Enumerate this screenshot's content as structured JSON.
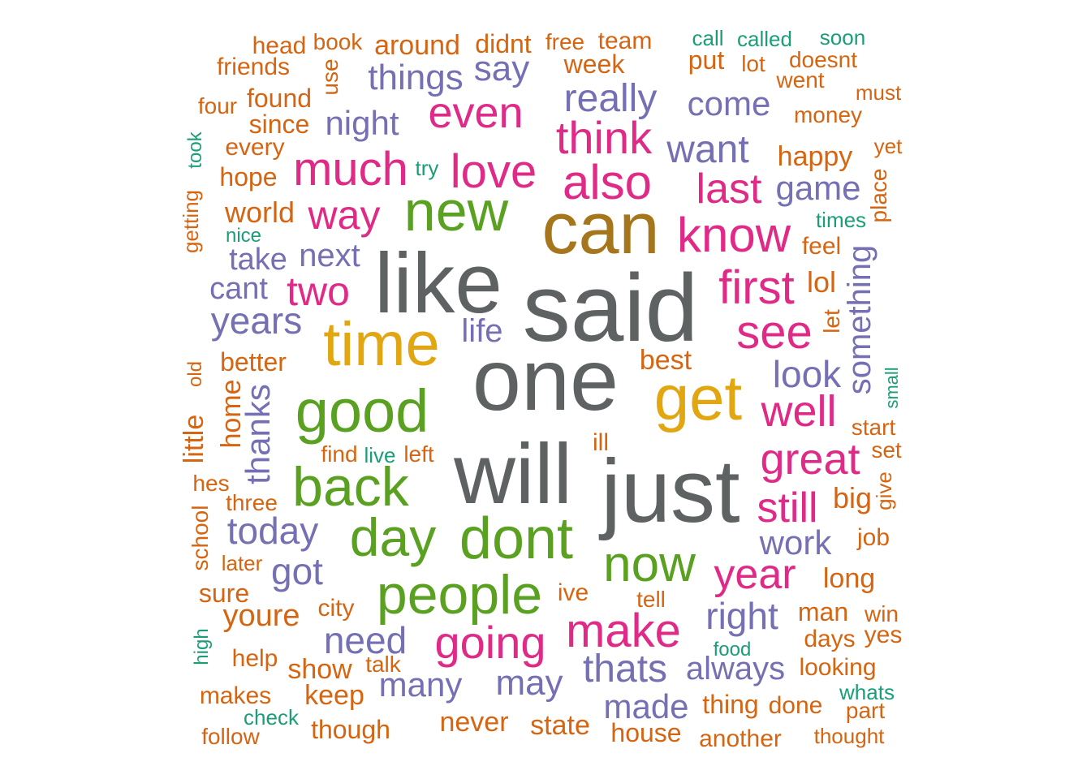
{
  "chart_data": {
    "type": "wordcloud",
    "colors": {
      "gray": "#5f6263",
      "pink": "#df2b87",
      "green": "#5aa121",
      "orange": "#d66512",
      "purple": "#7570b3",
      "teal": "#1b9e77",
      "gold": "#e2a610",
      "brown": "#a6761d"
    },
    "words": [
      {
        "text": "said",
        "color": "gray"
      },
      {
        "text": "like",
        "color": "gray"
      },
      {
        "text": "one",
        "color": "gray"
      },
      {
        "text": "will",
        "color": "gray"
      },
      {
        "text": "just",
        "color": "gray"
      },
      {
        "text": "can",
        "color": "brown"
      },
      {
        "text": "get",
        "color": "gold"
      },
      {
        "text": "time",
        "color": "gold"
      },
      {
        "text": "good",
        "color": "green"
      },
      {
        "text": "new",
        "color": "green"
      },
      {
        "text": "back",
        "color": "green"
      },
      {
        "text": "dont",
        "color": "green"
      },
      {
        "text": "day",
        "color": "green"
      },
      {
        "text": "people",
        "color": "green"
      },
      {
        "text": "now",
        "color": "green"
      },
      {
        "text": "know",
        "color": "pink"
      },
      {
        "text": "also",
        "color": "pink"
      },
      {
        "text": "love",
        "color": "pink"
      },
      {
        "text": "much",
        "color": "pink"
      },
      {
        "text": "think",
        "color": "pink"
      },
      {
        "text": "even",
        "color": "pink"
      },
      {
        "text": "first",
        "color": "pink"
      },
      {
        "text": "see",
        "color": "pink"
      },
      {
        "text": "well",
        "color": "pink"
      },
      {
        "text": "great",
        "color": "pink"
      },
      {
        "text": "still",
        "color": "pink"
      },
      {
        "text": "make",
        "color": "pink"
      },
      {
        "text": "going",
        "color": "pink"
      },
      {
        "text": "year",
        "color": "pink"
      },
      {
        "text": "two",
        "color": "pink"
      },
      {
        "text": "way",
        "color": "pink"
      },
      {
        "text": "last",
        "color": "pink"
      },
      {
        "text": "really",
        "color": "purple"
      },
      {
        "text": "want",
        "color": "purple"
      },
      {
        "text": "come",
        "color": "purple"
      },
      {
        "text": "things",
        "color": "purple"
      },
      {
        "text": "say",
        "color": "purple"
      },
      {
        "text": "night",
        "color": "purple"
      },
      {
        "text": "game",
        "color": "purple"
      },
      {
        "text": "take",
        "color": "purple"
      },
      {
        "text": "next",
        "color": "purple"
      },
      {
        "text": "cant",
        "color": "purple"
      },
      {
        "text": "years",
        "color": "purple"
      },
      {
        "text": "life",
        "color": "purple"
      },
      {
        "text": "look",
        "color": "purple"
      },
      {
        "text": "something",
        "color": "purple"
      },
      {
        "text": "thanks",
        "color": "purple"
      },
      {
        "text": "today",
        "color": "purple"
      },
      {
        "text": "work",
        "color": "purple"
      },
      {
        "text": "got",
        "color": "purple"
      },
      {
        "text": "right",
        "color": "purple"
      },
      {
        "text": "need",
        "color": "purple"
      },
      {
        "text": "thats",
        "color": "purple"
      },
      {
        "text": "always",
        "color": "purple"
      },
      {
        "text": "many",
        "color": "purple"
      },
      {
        "text": "may",
        "color": "purple"
      },
      {
        "text": "made",
        "color": "purple"
      },
      {
        "text": "head",
        "color": "orange"
      },
      {
        "text": "book",
        "color": "orange"
      },
      {
        "text": "around",
        "color": "orange"
      },
      {
        "text": "didnt",
        "color": "orange"
      },
      {
        "text": "free",
        "color": "orange"
      },
      {
        "text": "team",
        "color": "orange"
      },
      {
        "text": "friends",
        "color": "orange"
      },
      {
        "text": "use",
        "color": "orange"
      },
      {
        "text": "week",
        "color": "orange"
      },
      {
        "text": "put",
        "color": "orange"
      },
      {
        "text": "lot",
        "color": "orange"
      },
      {
        "text": "doesnt",
        "color": "orange"
      },
      {
        "text": "went",
        "color": "orange"
      },
      {
        "text": "must",
        "color": "orange"
      },
      {
        "text": "four",
        "color": "orange"
      },
      {
        "text": "found",
        "color": "orange"
      },
      {
        "text": "money",
        "color": "orange"
      },
      {
        "text": "since",
        "color": "orange"
      },
      {
        "text": "every",
        "color": "orange"
      },
      {
        "text": "happy",
        "color": "orange"
      },
      {
        "text": "yet",
        "color": "orange"
      },
      {
        "text": "hope",
        "color": "orange"
      },
      {
        "text": "place",
        "color": "orange"
      },
      {
        "text": "world",
        "color": "orange"
      },
      {
        "text": "getting",
        "color": "orange"
      },
      {
        "text": "feel",
        "color": "orange"
      },
      {
        "text": "lol",
        "color": "orange"
      },
      {
        "text": "let",
        "color": "orange"
      },
      {
        "text": "better",
        "color": "orange"
      },
      {
        "text": "best",
        "color": "orange"
      },
      {
        "text": "old",
        "color": "orange"
      },
      {
        "text": "home",
        "color": "orange"
      },
      {
        "text": "little",
        "color": "orange"
      },
      {
        "text": "start",
        "color": "orange"
      },
      {
        "text": "find",
        "color": "orange"
      },
      {
        "text": "left",
        "color": "orange"
      },
      {
        "text": "ill",
        "color": "orange"
      },
      {
        "text": "set",
        "color": "orange"
      },
      {
        "text": "hes",
        "color": "orange"
      },
      {
        "text": "give",
        "color": "orange"
      },
      {
        "text": "big",
        "color": "orange"
      },
      {
        "text": "three",
        "color": "orange"
      },
      {
        "text": "school",
        "color": "orange"
      },
      {
        "text": "job",
        "color": "orange"
      },
      {
        "text": "later",
        "color": "orange"
      },
      {
        "text": "long",
        "color": "orange"
      },
      {
        "text": "sure",
        "color": "orange"
      },
      {
        "text": "ive",
        "color": "orange"
      },
      {
        "text": "city",
        "color": "orange"
      },
      {
        "text": "tell",
        "color": "orange"
      },
      {
        "text": "youre",
        "color": "orange"
      },
      {
        "text": "man",
        "color": "orange"
      },
      {
        "text": "win",
        "color": "orange"
      },
      {
        "text": "days",
        "color": "orange"
      },
      {
        "text": "yes",
        "color": "orange"
      },
      {
        "text": "help",
        "color": "orange"
      },
      {
        "text": "show",
        "color": "orange"
      },
      {
        "text": "talk",
        "color": "orange"
      },
      {
        "text": "looking",
        "color": "orange"
      },
      {
        "text": "makes",
        "color": "orange"
      },
      {
        "text": "keep",
        "color": "orange"
      },
      {
        "text": "thing",
        "color": "orange"
      },
      {
        "text": "done",
        "color": "orange"
      },
      {
        "text": "part",
        "color": "orange"
      },
      {
        "text": "never",
        "color": "orange"
      },
      {
        "text": "state",
        "color": "orange"
      },
      {
        "text": "though",
        "color": "orange"
      },
      {
        "text": "follow",
        "color": "orange"
      },
      {
        "text": "house",
        "color": "orange"
      },
      {
        "text": "another",
        "color": "orange"
      },
      {
        "text": "thought",
        "color": "orange"
      },
      {
        "text": "call",
        "color": "teal"
      },
      {
        "text": "called",
        "color": "teal"
      },
      {
        "text": "soon",
        "color": "teal"
      },
      {
        "text": "try",
        "color": "teal"
      },
      {
        "text": "took",
        "color": "teal"
      },
      {
        "text": "times",
        "color": "teal"
      },
      {
        "text": "nice",
        "color": "teal"
      },
      {
        "text": "small",
        "color": "teal"
      },
      {
        "text": "live",
        "color": "teal"
      },
      {
        "text": "high",
        "color": "teal"
      },
      {
        "text": "food",
        "color": "teal"
      },
      {
        "text": "whats",
        "color": "teal"
      },
      {
        "text": "check",
        "color": "teal"
      }
    ]
  }
}
